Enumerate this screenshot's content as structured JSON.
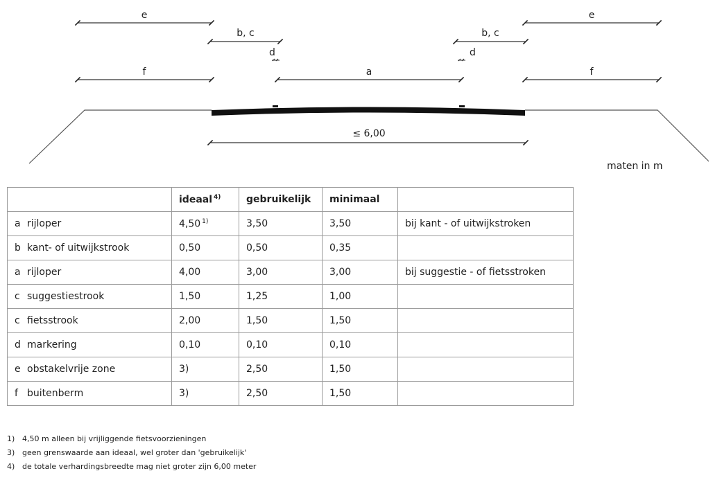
{
  "diagram": {
    "labels": {
      "e_left": "e",
      "e_right": "e",
      "bc_left": "b, c",
      "bc_right": "b, c",
      "d_left": "d",
      "d_right": "d",
      "a": "a",
      "f_left": "f",
      "f_right": "f",
      "total_width": "≤ 6,00"
    },
    "units_note": "maten in m"
  },
  "table": {
    "headers": {
      "ideaal": "ideaal",
      "ideaal_note": "4)",
      "gebruikelijk": "gebruikelijk",
      "minimaal": "minimaal"
    },
    "rows": [
      {
        "letter": "a",
        "name": "rijloper",
        "ideaal": "4,50",
        "ideaal_note": "1)",
        "gebruikelijk": "3,50",
        "minimaal": "3,50",
        "remark": "bij kant - of uitwijkstroken"
      },
      {
        "letter": "b",
        "name": "kant- of uitwijkstrook",
        "ideaal": "0,50",
        "ideaal_note": "",
        "gebruikelijk": "0,50",
        "minimaal": "0,35",
        "remark": ""
      },
      {
        "letter": "a",
        "name": "rijloper",
        "ideaal": "4,00",
        "ideaal_note": "",
        "gebruikelijk": "3,00",
        "minimaal": "3,00",
        "remark": "bij suggestie - of fietsstroken"
      },
      {
        "letter": "c",
        "name": "suggestiestrook",
        "ideaal": "1,50",
        "ideaal_note": "",
        "gebruikelijk": "1,25",
        "minimaal": "1,00",
        "remark": ""
      },
      {
        "letter": "c",
        "name": "fietsstrook",
        "ideaal": "2,00",
        "ideaal_note": "",
        "gebruikelijk": "1,50",
        "minimaal": "1,50",
        "remark": ""
      },
      {
        "letter": "d",
        "name": "markering",
        "ideaal": "0,10",
        "ideaal_note": "",
        "gebruikelijk": "0,10",
        "minimaal": "0,10",
        "remark": ""
      },
      {
        "letter": "e",
        "name": "obstakelvrije zone",
        "ideaal": "3)",
        "ideaal_note": "",
        "gebruikelijk": "2,50",
        "minimaal": "1,50",
        "remark": ""
      },
      {
        "letter": "f",
        "name": "buitenberm",
        "ideaal": "3)",
        "ideaal_note": "",
        "gebruikelijk": "2,50",
        "minimaal": "1,50",
        "remark": ""
      }
    ]
  },
  "footnotes": [
    {
      "num": "1)",
      "text": "4,50 m alleen bij vrijliggende fietsvoorzieningen"
    },
    {
      "num": "3)",
      "text": "geen grenswaarde aan ideaal, wel groter dan 'gebruikelijk'"
    },
    {
      "num": "4)",
      "text": "de totale verhardingsbreedte mag niet groter zijn 6,00 meter"
    }
  ]
}
